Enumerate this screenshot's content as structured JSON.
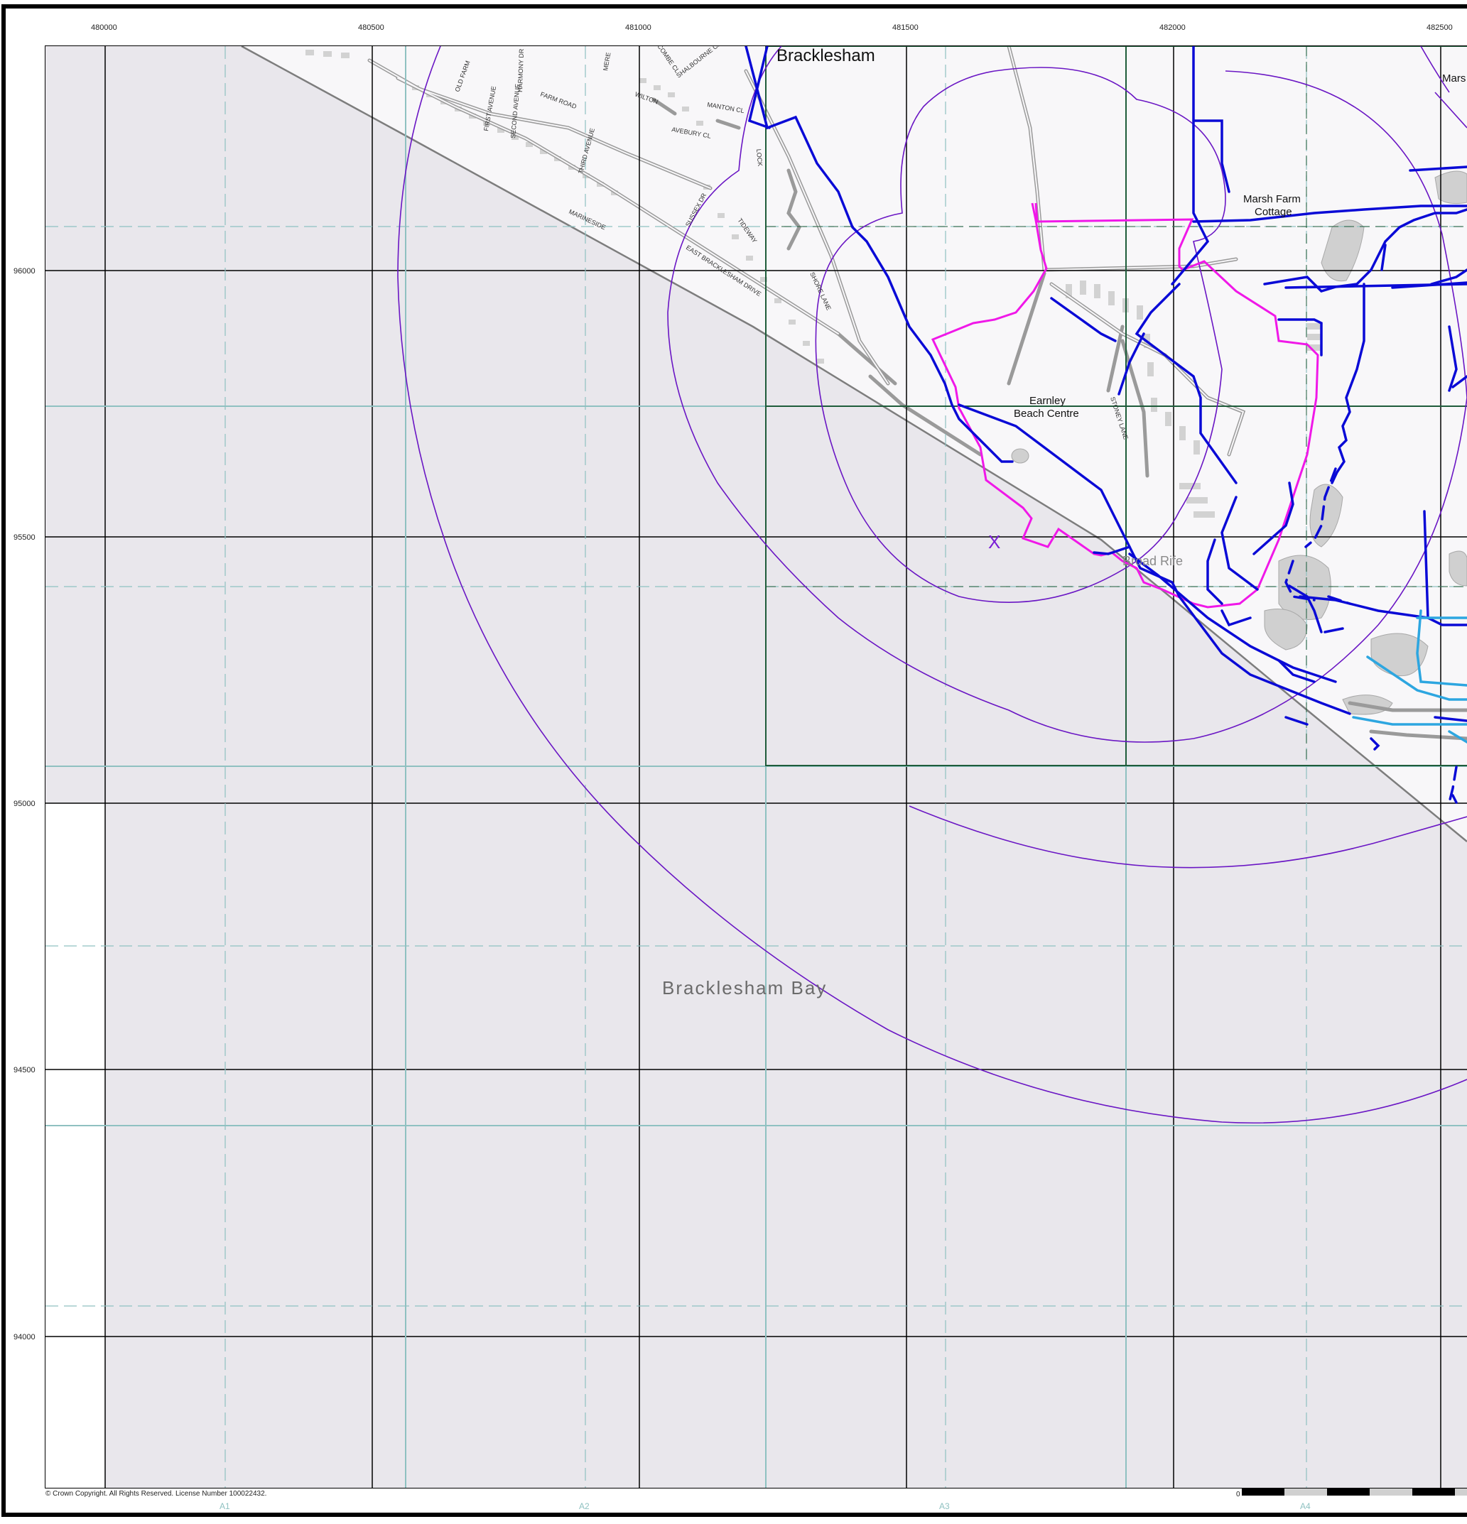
{
  "map": {
    "easting_labels": [
      "480000",
      "480500",
      "481000",
      "481500",
      "482000",
      "482500"
    ],
    "northing_labels": [
      "96000",
      "95500",
      "95000",
      "94500",
      "94000"
    ],
    "sheet_labels": [
      "A1",
      "A2",
      "A3",
      "A4"
    ],
    "copyright": "© Crown Copyright. All Rights Reserved. License Number 100022432.",
    "scale_zero": "0",
    "places": {
      "bracklesham": "Bracklesham",
      "bracklesham_bay": "Bracklesham Bay",
      "earnley": "Earnley\nBeach Centre",
      "earnley_line1": "Earnley",
      "earnley_line2": "Beach Centre",
      "marsh_farm_line1": "Marsh Farm",
      "marsh_farm_line2": "Cottage",
      "marsh_partial": "Mars",
      "broad_rife": "Broad Rife",
      "marker": "X"
    },
    "streets": {
      "old_farm": "OLD FARM",
      "cl": "CL",
      "first_avenue": "FIRST AVENUE",
      "second_avenue": "SECOND AVENUE",
      "third_avenue": "THIRD AVENUE",
      "harmony_dr": "HARMONY DR",
      "farm_road": "FARM ROAD",
      "wilton": "WILTON",
      "shalbourne": "SHALBOURNE CRESCENT",
      "manton_cl": "MANTON CL",
      "avebury_cl": "AVEBURY CL",
      "sussex_dr": "SUSSEX DR",
      "marineside": "MARINESIDE",
      "east_bracklesham": "EAST BRACKLESHAM DRIVE",
      "tideway": "TIDEWAY",
      "shore_lane": "SHORE LANE",
      "stoney_lane": "STONEY LANE",
      "lock": "LOCK",
      "combe": "COMBE CL",
      "mere": "MERE"
    },
    "colors": {
      "sea": "#e9e7ec",
      "land": "#f8f7f9",
      "grid": "#000000",
      "subgrid": "#8fc1c1",
      "subsheet": "#1e5c3a",
      "buffer_ring": "#6a16c4",
      "drain": "#0a0ad6",
      "drain_light": "#2da6e0",
      "site_boundary": "#f018e8",
      "road": "#9a9a9a",
      "building": "#d2d2d2"
    }
  }
}
